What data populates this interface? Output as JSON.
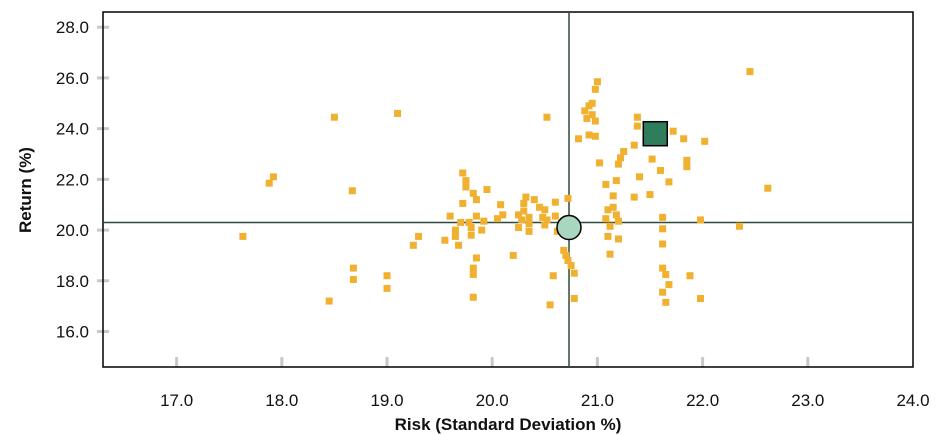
{
  "chart_data": {
    "type": "scatter",
    "xlabel": "Risk (Standard Deviation %)",
    "ylabel": "Return (%)",
    "xlim": [
      16.3,
      24.0
    ],
    "ylim": [
      14.6,
      28.6
    ],
    "xticks": [
      "17.0",
      "18.0",
      "19.0",
      "20.0",
      "21.0",
      "22.0",
      "23.0",
      "24.0"
    ],
    "yticks": [
      "16.0",
      "18.0",
      "20.0",
      "22.0",
      "24.0",
      "26.0",
      "28.0"
    ],
    "grid": false,
    "legend": "none",
    "crosshair": {
      "x": 20.73,
      "y": 20.3
    },
    "colors": {
      "points": "#F0B030",
      "highlight_square": "#2E7D5B",
      "highlight_circle": "#A9D6BE",
      "axis_lines": "#2F4A3A",
      "frame": "#000000",
      "ticks": "#C8C8C8"
    },
    "series": [
      {
        "marker": "small-square",
        "points": [
          [
            17.63,
            19.75
          ],
          [
            17.88,
            21.85
          ],
          [
            17.92,
            22.1
          ],
          [
            18.5,
            24.45
          ],
          [
            18.67,
            21.55
          ],
          [
            18.68,
            18.5
          ],
          [
            18.68,
            18.05
          ],
          [
            18.45,
            17.2
          ],
          [
            19.1,
            24.6
          ],
          [
            19.0,
            18.2
          ],
          [
            19.0,
            17.7
          ],
          [
            19.25,
            19.4
          ],
          [
            19.3,
            19.75
          ],
          [
            19.55,
            19.6
          ],
          [
            19.6,
            20.55
          ],
          [
            19.65,
            20.0
          ],
          [
            19.65,
            19.75
          ],
          [
            19.68,
            19.4
          ],
          [
            19.7,
            20.3
          ],
          [
            19.72,
            22.25
          ],
          [
            19.75,
            21.95
          ],
          [
            19.75,
            21.7
          ],
          [
            19.72,
            21.05
          ],
          [
            19.78,
            20.3
          ],
          [
            19.8,
            20.1
          ],
          [
            19.8,
            19.8
          ],
          [
            19.82,
            21.45
          ],
          [
            19.85,
            21.2
          ],
          [
            19.85,
            20.55
          ],
          [
            19.9,
            20.0
          ],
          [
            19.82,
            18.5
          ],
          [
            19.82,
            18.25
          ],
          [
            19.85,
            18.9
          ],
          [
            19.82,
            17.35
          ],
          [
            19.92,
            20.35
          ],
          [
            19.95,
            21.6
          ],
          [
            20.05,
            20.45
          ],
          [
            20.08,
            21.0
          ],
          [
            20.1,
            20.6
          ],
          [
            20.2,
            19.0
          ],
          [
            20.25,
            20.6
          ],
          [
            20.28,
            20.4
          ],
          [
            20.25,
            20.1
          ],
          [
            20.3,
            21.05
          ],
          [
            20.3,
            20.75
          ],
          [
            20.32,
            21.3
          ],
          [
            20.35,
            20.5
          ],
          [
            20.35,
            20.25
          ],
          [
            20.35,
            19.95
          ],
          [
            20.4,
            21.2
          ],
          [
            20.45,
            20.9
          ],
          [
            20.48,
            20.5
          ],
          [
            20.5,
            20.2
          ],
          [
            20.52,
            20.4
          ],
          [
            20.5,
            20.8
          ],
          [
            20.52,
            24.45
          ],
          [
            20.6,
            21.1
          ],
          [
            20.6,
            20.55
          ],
          [
            20.58,
            18.2
          ],
          [
            20.55,
            17.05
          ],
          [
            20.62,
            19.95
          ],
          [
            20.68,
            19.2
          ],
          [
            20.7,
            19.0
          ],
          [
            20.72,
            18.8
          ],
          [
            20.72,
            21.25
          ],
          [
            20.75,
            18.6
          ],
          [
            20.78,
            18.3
          ],
          [
            20.78,
            17.3
          ],
          [
            20.8,
            20.05
          ],
          [
            20.82,
            23.6
          ],
          [
            20.88,
            24.7
          ],
          [
            20.9,
            24.4
          ],
          [
            20.92,
            24.9
          ],
          [
            20.95,
            25.0
          ],
          [
            20.98,
            25.55
          ],
          [
            21.0,
            25.85
          ],
          [
            20.95,
            24.55
          ],
          [
            20.98,
            24.3
          ],
          [
            20.92,
            23.75
          ],
          [
            20.98,
            23.7
          ],
          [
            21.02,
            22.65
          ],
          [
            21.08,
            21.8
          ],
          [
            21.1,
            20.8
          ],
          [
            21.08,
            20.45
          ],
          [
            21.12,
            20.15
          ],
          [
            21.1,
            19.75
          ],
          [
            21.12,
            19.05
          ],
          [
            21.15,
            21.35
          ],
          [
            21.15,
            20.9
          ],
          [
            21.18,
            20.6
          ],
          [
            21.2,
            20.35
          ],
          [
            21.2,
            19.65
          ],
          [
            21.2,
            22.6
          ],
          [
            21.22,
            22.85
          ],
          [
            21.25,
            23.1
          ],
          [
            21.18,
            21.95
          ],
          [
            21.35,
            23.35
          ],
          [
            21.38,
            24.45
          ],
          [
            21.38,
            24.1
          ],
          [
            21.4,
            22.1
          ],
          [
            21.35,
            21.3
          ],
          [
            21.5,
            21.4
          ],
          [
            21.52,
            22.8
          ],
          [
            21.6,
            22.35
          ],
          [
            21.62,
            20.5
          ],
          [
            21.62,
            20.05
          ],
          [
            21.62,
            19.45
          ],
          [
            21.62,
            18.5
          ],
          [
            21.65,
            18.25
          ],
          [
            21.62,
            17.55
          ],
          [
            21.65,
            17.15
          ],
          [
            21.68,
            17.85
          ],
          [
            21.68,
            21.9
          ],
          [
            21.72,
            23.9
          ],
          [
            21.82,
            23.6
          ],
          [
            21.85,
            22.75
          ],
          [
            21.85,
            22.5
          ],
          [
            21.88,
            18.2
          ],
          [
            21.98,
            20.4
          ],
          [
            21.98,
            17.3
          ],
          [
            22.02,
            23.5
          ],
          [
            22.35,
            20.15
          ],
          [
            22.45,
            26.25
          ],
          [
            22.62,
            21.65
          ]
        ]
      },
      {
        "marker": "large-square",
        "points": [
          [
            21.55,
            23.8
          ]
        ]
      },
      {
        "marker": "circle",
        "points": [
          [
            20.73,
            20.1
          ]
        ]
      }
    ]
  }
}
